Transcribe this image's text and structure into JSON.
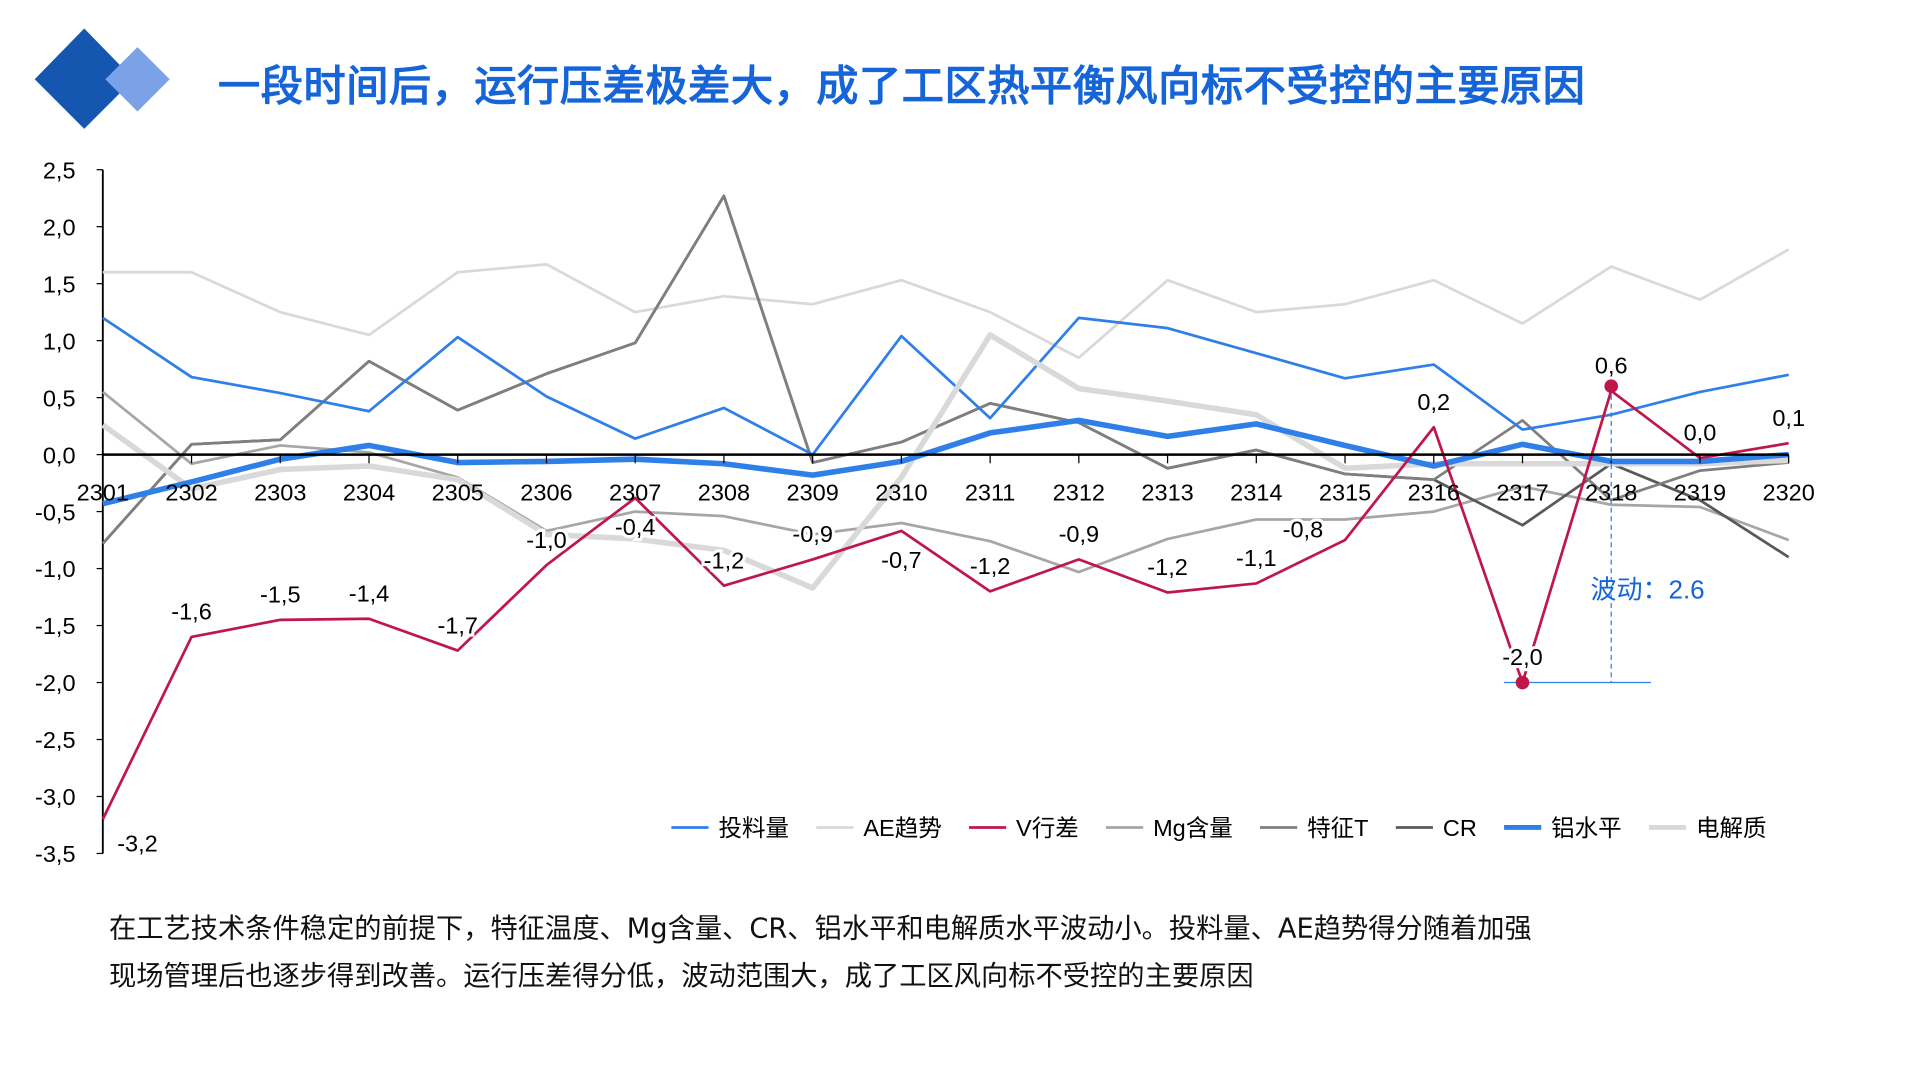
{
  "header": {
    "title": "一段时间后，运行压差极差大，成了工区热平衡风向标不受控的主要原因"
  },
  "caption": {
    "line1": "在工艺技术条件稳定的前提下，特征温度、Mg含量、CR、铝水平和电解质水平波动小。投料量、AE趋势得分随着加强",
    "line2": "现场管理后也逐步得到改善。运行压差得分低，波动范围大，成了工区风向标不受控的主要原因"
  },
  "chart_data": {
    "type": "line",
    "title": "",
    "xlabel": "",
    "ylabel": "",
    "ylim": [
      -3.5,
      2.5
    ],
    "yticks": [
      "2,5",
      "2,0",
      "1,5",
      "1,0",
      "0,5",
      "0,0",
      "-0,5",
      "-1,0",
      "-1,5",
      "-2,0",
      "-2,5",
      "-3,0",
      "-3,5"
    ],
    "ytick_values": [
      2.5,
      2.0,
      1.5,
      1.0,
      0.5,
      0.0,
      -0.5,
      -1.0,
      -1.5,
      -2.0,
      -2.5,
      -3.0,
      -3.5
    ],
    "categories": [
      "2301",
      "2302",
      "2303",
      "2304",
      "2305",
      "2306",
      "2307",
      "2308",
      "2309",
      "2310",
      "2311",
      "2312",
      "2313",
      "2314",
      "2315",
      "2316",
      "2317",
      "2318",
      "2319",
      "2320"
    ],
    "legend_position": "bottom-right",
    "series": [
      {
        "name": "投料量",
        "color": "#2F7FE8",
        "width": 2.2,
        "values": [
          1.2,
          0.68,
          0.54,
          0.38,
          1.03,
          0.51,
          0.14,
          0.41,
          0.0,
          1.04,
          0.32,
          1.2,
          1.11,
          0.89,
          0.67,
          0.79,
          0.22,
          0.35,
          0.55,
          0.7
        ]
      },
      {
        "name": "AE趋势",
        "color": "#D9D9D9",
        "width": 2.2,
        "values": [
          1.6,
          1.6,
          1.25,
          1.05,
          1.6,
          1.67,
          1.25,
          1.39,
          1.32,
          1.53,
          1.25,
          0.85,
          1.53,
          1.25,
          1.32,
          1.53,
          1.15,
          1.65,
          1.36,
          1.8
        ]
      },
      {
        "name": "V行差",
        "color": "#C0174A",
        "width": 2.2,
        "values": [
          -3.2,
          -1.6,
          -1.45,
          -1.44,
          -1.72,
          -0.97,
          -0.38,
          -1.15,
          -0.92,
          -0.67,
          -1.2,
          -0.92,
          -1.21,
          -1.13,
          -0.75,
          0.24,
          -2.0,
          0.56,
          -0.03,
          0.1
        ],
        "labels": [
          "-3,2",
          "-1,6",
          "-1,5",
          "-1,4",
          "-1,7",
          "-1,0",
          "-0,4",
          "-1,2",
          "-0,9",
          "-0,7",
          "-1,2",
          "-0,9",
          "-1,2",
          "-1,1",
          "-0,8",
          "0,2",
          "-2,0",
          "0,6",
          "0,0",
          "0,1"
        ]
      },
      {
        "name": "Mg含量",
        "color": "#A6A6A6",
        "width": 2.2,
        "values": [
          0.55,
          -0.08,
          0.08,
          0.02,
          -0.2,
          -0.67,
          -0.5,
          -0.54,
          -0.7,
          -0.6,
          -0.76,
          -1.03,
          -0.74,
          -0.57,
          -0.57,
          -0.5,
          -0.28,
          -0.44,
          -0.46,
          -0.75
        ]
      },
      {
        "name": "特征T",
        "color": "#7F7F7F",
        "width": 2.2,
        "values": [
          -0.78,
          0.09,
          0.13,
          0.82,
          0.39,
          0.71,
          0.98,
          2.27,
          -0.07,
          0.11,
          0.45,
          0.28,
          -0.12,
          0.04,
          -0.17,
          -0.22,
          0.3,
          -0.4,
          -0.14,
          -0.07
        ]
      },
      {
        "name": "CR",
        "color": "#595959",
        "width": 2.2,
        "values": [
          -0.78,
          0.09,
          0.13,
          0.82,
          0.39,
          0.71,
          0.98,
          2.27,
          -0.07,
          0.11,
          0.45,
          0.28,
          -0.12,
          0.04,
          -0.17,
          -0.22,
          -0.62,
          -0.08,
          -0.4,
          -0.9
        ]
      },
      {
        "name": "铝水平",
        "color": "#2F7FE8",
        "width": 4.5,
        "values": [
          -0.43,
          -0.24,
          -0.04,
          0.08,
          -0.07,
          -0.06,
          -0.04,
          -0.08,
          -0.18,
          -0.06,
          0.19,
          0.3,
          0.16,
          0.27,
          0.08,
          -0.1,
          0.09,
          -0.06,
          -0.06,
          0.0
        ]
      },
      {
        "name": "电解质",
        "color": "#D9D9D9",
        "width": 4.5,
        "values": [
          0.26,
          -0.3,
          -0.13,
          -0.1,
          -0.22,
          -0.7,
          -0.74,
          -0.84,
          -1.17,
          -0.2,
          1.05,
          0.58,
          0.47,
          0.35,
          -0.12,
          -0.08,
          -0.08,
          -0.08,
          -0.08,
          -0.05
        ]
      }
    ],
    "annotation": {
      "text": "波动：2.6",
      "color": "#1565D8",
      "from_category": "2317",
      "to_category": "2318",
      "low": -2.0,
      "high": 0.6
    }
  }
}
